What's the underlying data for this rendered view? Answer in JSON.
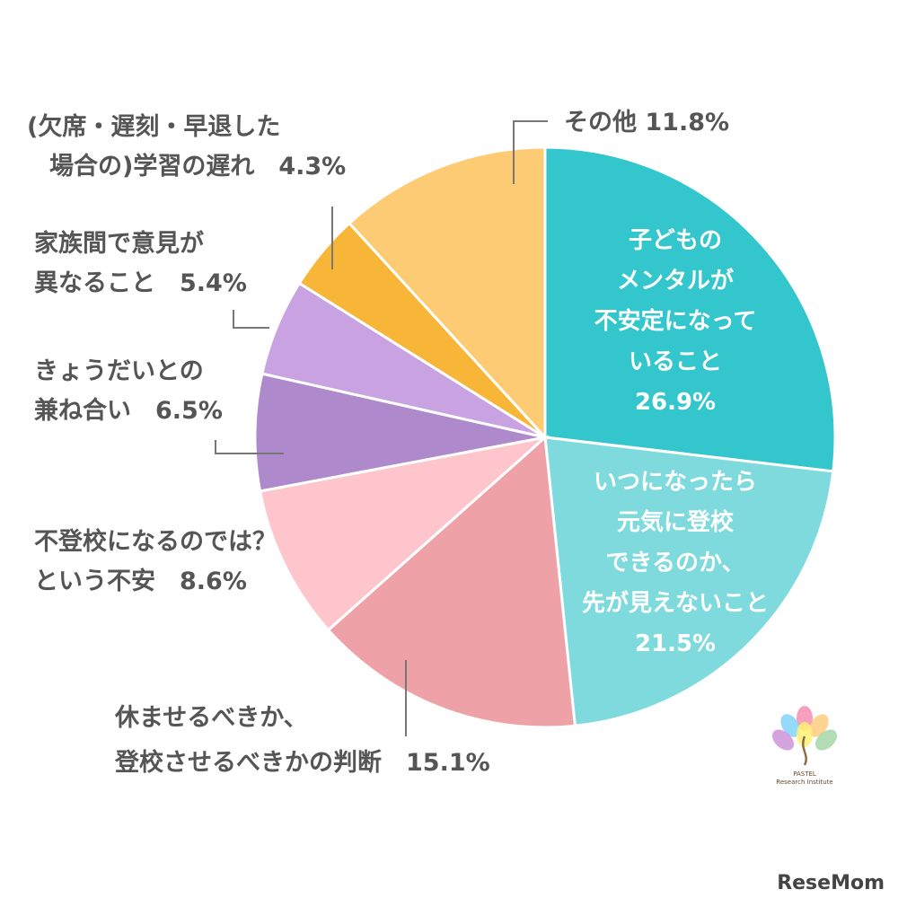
{
  "chart_data": {
    "type": "pie",
    "start": "12 o'clock, clockwise",
    "slices": [
      {
        "label": "子どものメンタルが不安定になっていること",
        "label_lines": [
          "子どもの",
          "メンタルが",
          "不安定になって",
          "いること",
          "26.9%"
        ],
        "value": 26.9,
        "color": "#33c6cc",
        "label_placement": "inside"
      },
      {
        "label": "いつになったら元気に登校できるのか、先が見えないこと",
        "label_lines": [
          "いつになったら",
          "元気に登校",
          "できるのか、",
          "先が見えないこと",
          "21.5%"
        ],
        "value": 21.5,
        "color": "#7fdadd",
        "label_placement": "inside"
      },
      {
        "label": "休ませるべきか、登校させるべきかの判断",
        "label_lines": [
          "休ませるべきか、",
          "登校させるべきかの判断　15.1%"
        ],
        "value": 15.1,
        "color": "#eea2a8",
        "label_placement": "outside"
      },
      {
        "label": "不登校になるのでは？という不安",
        "label_lines": [
          "不登校になるのでは？",
          "という不安　8.6%"
        ],
        "value": 8.6,
        "color": "#fec6cc",
        "label_placement": "outside"
      },
      {
        "label": "きょうだいとの兼ね合い",
        "label_lines": [
          "きょうだいとの",
          "兼ね合い　6.5%"
        ],
        "value": 6.5,
        "color": "#ae89cc",
        "label_placement": "outside"
      },
      {
        "label": "家族間で意見が異なること",
        "label_lines": [
          "家族間で意見が",
          "異なること　5.4%"
        ],
        "value": 5.4,
        "color": "#c9a2e2",
        "label_placement": "outside"
      },
      {
        "label": "(欠席・遅刻・早退した場合の)学習の遅れ",
        "label_lines": [
          "(欠席・遅刻・早退した",
          "場合の)学習の遅れ　4.3%"
        ],
        "value": 4.3,
        "color": "#f7b638",
        "label_placement": "outside"
      },
      {
        "label": "その他",
        "label_lines": [
          "その他 11.8%"
        ],
        "value": 11.8,
        "color": "#fdcb73",
        "label_placement": "outside"
      }
    ]
  },
  "logo": {
    "text_line1": "PASTEL",
    "text_line2": "Research Institute"
  },
  "brand": {
    "text": "ReseMom"
  }
}
